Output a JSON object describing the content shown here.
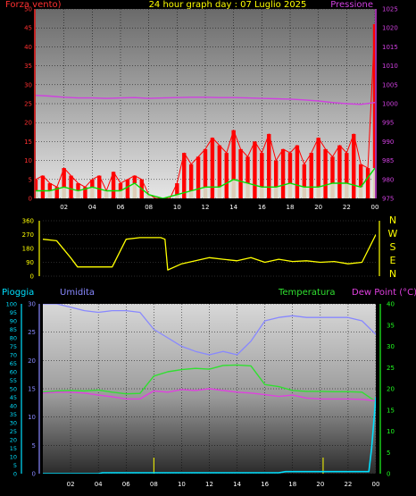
{
  "header": {
    "left_title": "Forza vento)",
    "center_title": "24 hour graph day : 07 Luglio 2025",
    "right_title": "Pressione"
  },
  "panel3_labels": {
    "rain": "Pioggia",
    "humidity": "Umidita",
    "temperature": "Temperatura",
    "dewpoint": "Dew Point (°C)"
  },
  "colors": {
    "background": "#000000",
    "wind": "#ff0000",
    "gust": "#00e000",
    "avg": "#d8f0d8",
    "pressure": "#d040e0",
    "direction": "#ffff00",
    "humidity": "#8888ff",
    "temperature": "#30e030",
    "dewpoint": "#e040e0",
    "rain": "#00e0ff",
    "axis_left": "#ff3030",
    "axis_right": "#d040e0",
    "axis_right3": "#20ff20"
  },
  "chart_data": [
    {
      "type": "line",
      "id": "wind-pressure",
      "title": "24 hour graph day : 07 Luglio 2025",
      "xlabel": "",
      "x_ticks": [
        "02",
        "04",
        "06",
        "08",
        "10",
        "12",
        "14",
        "16",
        "18",
        "20",
        "22",
        "00"
      ],
      "x_range": [
        0,
        24
      ],
      "y_left": {
        "label": "Forza vento)",
        "range": [
          0,
          50
        ],
        "ticks": [
          "0",
          "5",
          "10",
          "15",
          "20",
          "25",
          "30",
          "35",
          "40",
          "45",
          "50"
        ]
      },
      "y_right": {
        "label": "Pressione",
        "range": [
          975,
          1025
        ],
        "ticks": [
          "975",
          "980",
          "985",
          "990",
          "995",
          "1000",
          "1005",
          "1010",
          "1015",
          "1020",
          "1025"
        ]
      },
      "series": [
        {
          "name": "Forza vento)",
          "x": [
            0,
            0.5,
            1,
            1.5,
            2,
            2.5,
            3,
            3.5,
            4,
            4.5,
            5,
            5.5,
            6,
            6.5,
            7,
            7.5,
            8,
            8.5,
            9,
            9.5,
            10,
            10.5,
            11,
            11.5,
            12,
            12.5,
            13,
            13.5,
            14,
            14.5,
            15,
            15.5,
            16,
            16.5,
            17,
            17.5,
            18,
            18.5,
            19,
            19.5,
            20,
            20.5,
            21,
            21.5,
            22,
            22.5,
            23,
            23.5,
            24
          ],
          "y": [
            5,
            6,
            4,
            3,
            8,
            6,
            4,
            3,
            5,
            6,
            2,
            7,
            4,
            5,
            6,
            5,
            1,
            0,
            0,
            0,
            4,
            12,
            9,
            11,
            13,
            16,
            14,
            12,
            18,
            13,
            11,
            15,
            12,
            17,
            10,
            13,
            12,
            14,
            9,
            12,
            16,
            13,
            11,
            14,
            12,
            17,
            9,
            8,
            46
          ]
        },
        {
          "name": "Raffica",
          "x": [
            0,
            1,
            2,
            3,
            4,
            5,
            6,
            7,
            8,
            9,
            10,
            11,
            12,
            13,
            14,
            15,
            16,
            17,
            18,
            19,
            20,
            21,
            22,
            23,
            24
          ],
          "y": [
            2,
            2,
            3,
            2,
            3,
            2,
            2,
            4,
            1,
            0,
            1,
            2,
            3,
            3,
            5,
            4,
            3,
            3,
            4,
            3,
            3,
            4,
            4,
            3,
            8
          ]
        },
        {
          "name": "Pressione",
          "x": [
            0,
            1,
            2,
            3,
            4,
            5,
            6,
            7,
            8,
            9,
            10,
            11,
            12,
            13,
            14,
            15,
            16,
            17,
            18,
            19,
            20,
            21,
            22,
            23,
            24
          ],
          "y": [
            1002.2,
            1002,
            1001.7,
            1001.5,
            1001.5,
            1001.4,
            1001.5,
            1001.6,
            1001.4,
            1001.5,
            1001.6,
            1001.7,
            1001.7,
            1001.6,
            1001.6,
            1001.5,
            1001.4,
            1001.3,
            1001.2,
            1001,
            1000.7,
            1000.3,
            1000,
            999.8,
            1000.3
          ]
        }
      ]
    },
    {
      "type": "line",
      "id": "direction",
      "xlabel": "",
      "y_range": [
        0,
        360
      ],
      "y_ticks": [
        "0",
        "90",
        "180",
        "270",
        "360"
      ],
      "y_right_labels": [
        "N",
        "W",
        "S",
        "E",
        "N"
      ],
      "series": [
        {
          "name": "Direzione",
          "x": [
            0,
            1,
            2,
            2.5,
            3,
            4,
            5,
            6,
            7,
            7.8,
            8.5,
            8.8,
            9,
            10,
            11,
            12,
            13,
            14,
            15,
            16,
            17,
            18,
            19,
            20,
            21,
            22,
            23,
            24
          ],
          "y": [
            240,
            230,
            120,
            60,
            60,
            60,
            60,
            240,
            250,
            250,
            250,
            240,
            40,
            80,
            100,
            120,
            110,
            100,
            120,
            90,
            110,
            95,
            100,
            90,
            95,
            80,
            90,
            270
          ]
        }
      ]
    },
    {
      "type": "line",
      "id": "rain-humidity-temperature",
      "xlabel": "",
      "x_ticks": [
        "02",
        "04",
        "06",
        "08",
        "10",
        "12",
        "14",
        "16",
        "18",
        "20",
        "22",
        "00"
      ],
      "x_range": [
        0,
        24
      ],
      "y_left_outer": {
        "label": "Pioggia",
        "range": [
          0,
          100
        ],
        "ticks": [
          "0",
          "5",
          "10",
          "15",
          "20",
          "25",
          "30",
          "35",
          "40",
          "45",
          "50",
          "55",
          "60",
          "65",
          "70",
          "75",
          "80",
          "85",
          "90",
          "95",
          "100"
        ]
      },
      "y_left_inner": {
        "label": "Umidita",
        "range": [
          0,
          30
        ],
        "ticks": [
          "0",
          "5",
          "10",
          "15",
          "20",
          "25",
          "30"
        ]
      },
      "y_right": {
        "label": "Temperatura",
        "range": [
          0,
          40
        ],
        "ticks": [
          "0",
          "5",
          "10",
          "15",
          "20",
          "25",
          "30",
          "35",
          "40"
        ]
      },
      "series": [
        {
          "name": "Umidita",
          "x": [
            0,
            1,
            2,
            3,
            4,
            5,
            6,
            7,
            8,
            9,
            10,
            11,
            12,
            13,
            14,
            14.5,
            15,
            16,
            17,
            18,
            19,
            20,
            21,
            22,
            23,
            24
          ],
          "y": [
            100,
            100,
            98,
            96,
            95,
            96,
            96,
            95,
            85,
            80,
            75,
            72,
            70,
            72,
            70,
            74,
            78,
            90,
            92,
            93,
            92,
            92,
            92,
            92,
            90,
            82
          ]
        },
        {
          "name": "Temperatura",
          "x": [
            0,
            1,
            2,
            3,
            4,
            5,
            6,
            7,
            8,
            9,
            10,
            11,
            12,
            13,
            14,
            15,
            16,
            17,
            18,
            19,
            20,
            21,
            22,
            23,
            24
          ],
          "y": [
            19.2,
            19.5,
            19.6,
            19.5,
            19.7,
            19.2,
            18.8,
            18.9,
            23,
            24,
            24.5,
            24.8,
            24.6,
            25.5,
            25.6,
            25.4,
            21,
            20.5,
            19.6,
            19.4,
            19.4,
            19.3,
            19.3,
            19.2,
            17
          ]
        },
        {
          "name": "Dew Point (°C)",
          "x": [
            0,
            1,
            2,
            3,
            4,
            5,
            6,
            7,
            8,
            9,
            10,
            11,
            12,
            13,
            14,
            15,
            16,
            17,
            18,
            19,
            20,
            21,
            22,
            23,
            24
          ],
          "y": [
            19,
            19.2,
            19.2,
            19,
            18.5,
            18.1,
            17.6,
            17.6,
            19.5,
            19.2,
            19.8,
            19.6,
            20,
            19.6,
            19.2,
            19,
            18.6,
            18.2,
            18.5,
            17.8,
            17.6,
            17.6,
            17.6,
            17.5,
            17.2
          ]
        },
        {
          "name": "Pioggia",
          "x": [
            0,
            4,
            4.3,
            8,
            16,
            17,
            17.5,
            20,
            21,
            23.5,
            23.7,
            24
          ],
          "y": [
            0,
            0,
            0.5,
            0.5,
            0.5,
            0.5,
            1.2,
            1.2,
            1.2,
            1.2,
            15,
            45
          ]
        }
      ]
    }
  ]
}
